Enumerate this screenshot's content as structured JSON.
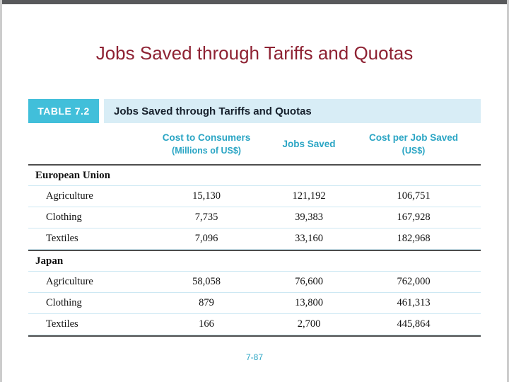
{
  "slide": {
    "title": "Jobs Saved through Tariffs and Quotas",
    "page_number": "7-87"
  },
  "table": {
    "badge": "TABLE 7.2",
    "caption": "Jobs Saved through Tariffs and Quotas",
    "columns": [
      {
        "label": "Cost to Consumers",
        "sublabel": "(Millions of US$)"
      },
      {
        "label": "Jobs Saved",
        "sublabel": ""
      },
      {
        "label": "Cost per Job Saved",
        "sublabel": "(US$)"
      }
    ],
    "sections": [
      {
        "name": "European Union",
        "rows": [
          {
            "label": "Agriculture",
            "values": [
              "15,130",
              "121,192",
              "106,751"
            ]
          },
          {
            "label": "Clothing",
            "values": [
              "7,735",
              "39,383",
              "167,928"
            ]
          },
          {
            "label": "Textiles",
            "values": [
              "7,096",
              "33,160",
              "182,968"
            ]
          }
        ]
      },
      {
        "name": "Japan",
        "rows": [
          {
            "label": "Agriculture",
            "values": [
              "58,058",
              "76,600",
              "762,000"
            ]
          },
          {
            "label": "Clothing",
            "values": [
              "879",
              "13,800",
              "461,313"
            ]
          },
          {
            "label": "Textiles",
            "values": [
              "166",
              "2,700",
              "445,864"
            ]
          }
        ]
      }
    ]
  },
  "colors": {
    "title_text": "#8e2233",
    "badge_bg": "#41bfda",
    "caption_bg": "#d8edf6",
    "teal_text": "#2aa5c4",
    "row_separator": "#cde8f3",
    "heavy_rule": "#4d4d4d"
  },
  "chart_data": {
    "type": "table",
    "title": "Jobs Saved through Tariffs and Quotas",
    "columns": [
      "Cost to Consumers (Millions of US$)",
      "Jobs Saved",
      "Cost per Job Saved (US$)"
    ],
    "rows": [
      {
        "group": "European Union",
        "category": "Agriculture",
        "cost_to_consumers_millions": 15130,
        "jobs_saved": 121192,
        "cost_per_job_saved": 106751
      },
      {
        "group": "European Union",
        "category": "Clothing",
        "cost_to_consumers_millions": 7735,
        "jobs_saved": 39383,
        "cost_per_job_saved": 167928
      },
      {
        "group": "European Union",
        "category": "Textiles",
        "cost_to_consumers_millions": 7096,
        "jobs_saved": 33160,
        "cost_per_job_saved": 182968
      },
      {
        "group": "Japan",
        "category": "Agriculture",
        "cost_to_consumers_millions": 58058,
        "jobs_saved": 76600,
        "cost_per_job_saved": 762000
      },
      {
        "group": "Japan",
        "category": "Clothing",
        "cost_to_consumers_millions": 879,
        "jobs_saved": 13800,
        "cost_per_job_saved": 461313
      },
      {
        "group": "Japan",
        "category": "Textiles",
        "cost_to_consumers_millions": 166,
        "jobs_saved": 2700,
        "cost_per_job_saved": 445864
      }
    ]
  }
}
